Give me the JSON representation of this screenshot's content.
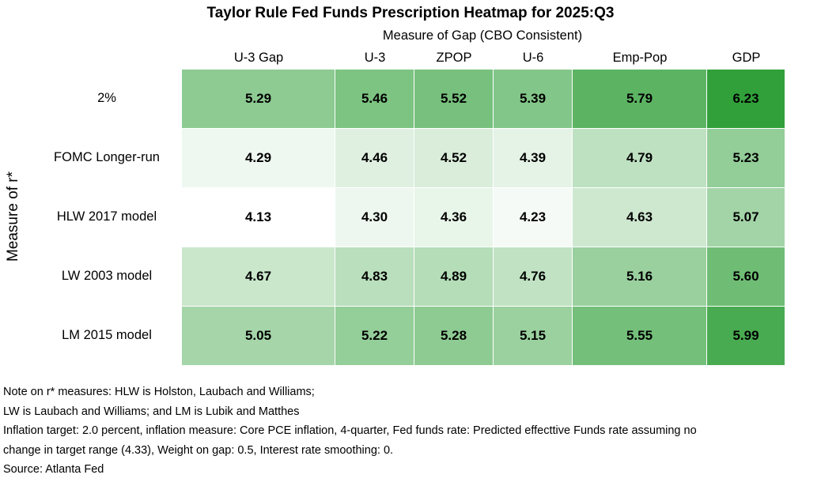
{
  "chart_data": {
    "type": "heatmap",
    "title": "Taylor Rule Fed Funds Prescription Heatmap for 2025:Q3",
    "xlabel": "Measure of Gap (CBO Consistent)",
    "ylabel": "Measure of r*",
    "columns": [
      "U-3 Gap",
      "U-3",
      "ZPOP",
      "U-6",
      "Emp-Pop",
      "GDP"
    ],
    "rows": [
      "2%",
      "FOMC Longer-run",
      "HLW 2017 model",
      "LW 2003 model",
      "LM 2015 model"
    ],
    "values": [
      [
        5.29,
        5.46,
        5.52,
        5.39,
        5.79,
        6.23
      ],
      [
        4.29,
        4.46,
        4.52,
        4.39,
        4.79,
        5.23
      ],
      [
        4.13,
        4.3,
        4.36,
        4.23,
        4.63,
        5.07
      ],
      [
        4.67,
        4.83,
        4.89,
        4.76,
        5.16,
        5.6
      ],
      [
        5.05,
        5.22,
        5.28,
        5.15,
        5.55,
        5.99
      ]
    ],
    "color_scale": {
      "low": "#ffffff",
      "high": "#31a03a"
    }
  },
  "notes": [
    "Note on r* measures:  HLW is Holston, Laubach and Williams;",
    "LW is Laubach and Williams; and LM is Lubik and Matthes",
    "Inflation target: 2.0 percent, inflation measure: Core PCE inflation, 4-quarter, Fed funds rate: Predicted effecttive Funds rate assuming no",
    "change in target range (4.33), Weight on gap: 0.5, Interest rate smoothing: 0.",
    "Source: Atlanta Fed"
  ]
}
